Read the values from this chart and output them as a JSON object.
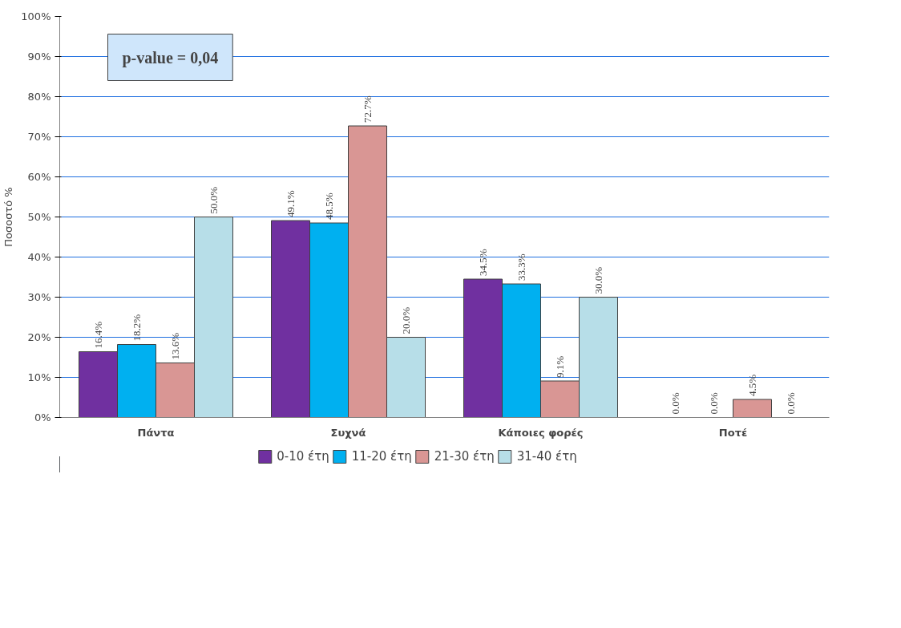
{
  "chart_data": {
    "type": "bar",
    "ylabel": "Ποσοστό %",
    "categories": [
      "Πάντα",
      "Συχνά",
      "Κάποιες φορές",
      "Ποτέ"
    ],
    "series": [
      {
        "name": "0-10 έτη",
        "color": "#7030a0",
        "values": [
          16.4,
          49.1,
          34.5,
          0.0
        ],
        "value_labels": [
          "16.4%",
          "49.1%",
          "34.5%",
          "0.0%"
        ]
      },
      {
        "name": "11-20 έτη",
        "color": "#00b0f0",
        "values": [
          18.2,
          48.5,
          33.3,
          0.0
        ],
        "value_labels": [
          "18.2%",
          "48.5%",
          "33.3%",
          "0.0%"
        ]
      },
      {
        "name": "21-30 έτη",
        "color": "#d99694",
        "values": [
          13.6,
          72.7,
          9.1,
          4.5
        ],
        "value_labels": [
          "13.6%",
          "72.7%",
          "9.1%",
          "4.5%"
        ]
      },
      {
        "name": "31-40 έτη",
        "color": "#b7dee8",
        "values": [
          50.0,
          20.0,
          30.0,
          0.0
        ],
        "value_labels": [
          "50.0%",
          "20.0%",
          "30.0%",
          "0.0%"
        ]
      }
    ],
    "ylim": [
      0,
      100
    ],
    "yticks": [
      {
        "value": 0,
        "label": "0%"
      },
      {
        "value": 10,
        "label": "10%"
      },
      {
        "value": 20,
        "label": "20%"
      },
      {
        "value": 30,
        "label": "30%"
      },
      {
        "value": 40,
        "label": "40%"
      },
      {
        "value": 50,
        "label": "50%"
      },
      {
        "value": 60,
        "label": "60%"
      },
      {
        "value": 70,
        "label": "70%"
      },
      {
        "value": 80,
        "label": "80%"
      },
      {
        "value": 90,
        "label": "90%"
      },
      {
        "value": 100,
        "label": "100%"
      }
    ],
    "grid": "y",
    "legend": "bottom",
    "annotations": [
      "p-value = 0,04"
    ]
  }
}
